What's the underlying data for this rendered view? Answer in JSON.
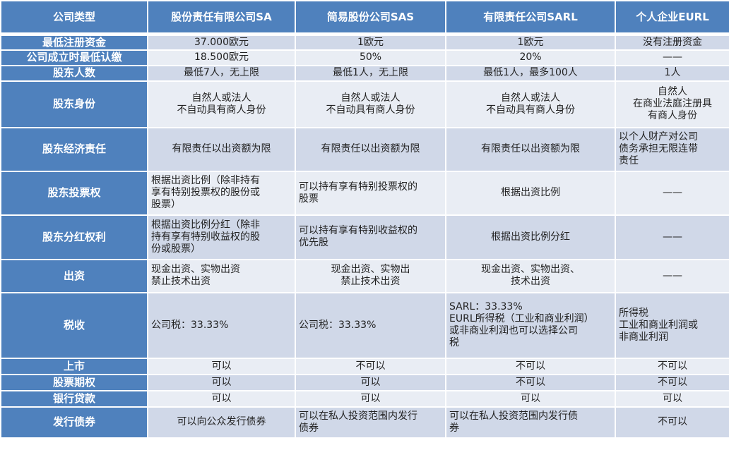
{
  "colors": {
    "header": "#4f81bd",
    "row_dark": "#d0d8e8",
    "row_light": "#e9edf4"
  },
  "headers": [
    "公司类型",
    "股份责任有限公司SA",
    "简易股份公司SAS",
    "有限责任公司SARL",
    "个人企业EURL"
  ],
  "rows": [
    {
      "label": "最低注册资金",
      "cells": [
        "37.000欧元",
        "1欧元",
        "1欧元",
        "没有注册资金"
      ]
    },
    {
      "label": "公司成立时最低认缴",
      "cells": [
        "18.500欧元",
        "50%",
        "20%",
        "——"
      ]
    },
    {
      "label": "股东人数",
      "cells": [
        "最低7人，无上限",
        "最低1人，无上限",
        "最低1人，最多100人",
        "1人"
      ]
    },
    {
      "label": "股东身份",
      "cells": [
        "自然人或法人\n不自动具有商人身份",
        "自然人或法人\n不自动具有商人身份",
        "自然人或法人\n不自动具有商人身份",
        "自然人\n在商业法庭注册具\n有商人身份"
      ]
    },
    {
      "label": "股东经济责任",
      "cells": [
        "有限责任以出资额为限",
        "有限责任以出资额为限",
        "有限责任以出资额为限",
        "以个人财产对公司\n债务承担无限连带\n责任"
      ]
    },
    {
      "label": "股东投票权",
      "cells": [
        "根据出资比例（除非持有\n享有特别投票权的股份或\n股票）",
        "可以持有享有特别投票权的\n股票",
        "根据出资比例",
        "——"
      ]
    },
    {
      "label": "股东分红权利",
      "cells": [
        "根据出资比例分红（除非\n持有享有特别收益权的股\n份或股票）",
        "可以持有享有特别收益权的\n优先股",
        "根据出资比例分红",
        "——"
      ]
    },
    {
      "label": "出资",
      "cells": [
        "现金出资、实物出资\n禁止技术出资",
        "现金出资、实物出\n禁止技术出资",
        "现金出资、实物出资、\n技术出资",
        "——"
      ]
    },
    {
      "label": "税收",
      "cells": [
        "公司税：33.33%",
        "公司税：33.33%",
        "SARL：33.33%\nEURL所得税（工业和商业利润）\n或非商业利润也可以选择公司\n税",
        "所得税\n工业和商业利润或\n非商业利润"
      ]
    },
    {
      "label": "上市",
      "cells": [
        "可以",
        "不可以",
        "不可以",
        "不可以"
      ]
    },
    {
      "label": "股票期权",
      "cells": [
        "可以",
        "可以",
        "不可以",
        "不可以"
      ]
    },
    {
      "label": "银行贷款",
      "cells": [
        "可以",
        "可以",
        "可以",
        "可以"
      ]
    },
    {
      "label": "发行债券",
      "cells": [
        "可以向公众发行债券",
        "可以在私人投资范围内发行\n债券",
        "可以在私人投资范围内发行债\n券",
        "不可以"
      ]
    }
  ]
}
